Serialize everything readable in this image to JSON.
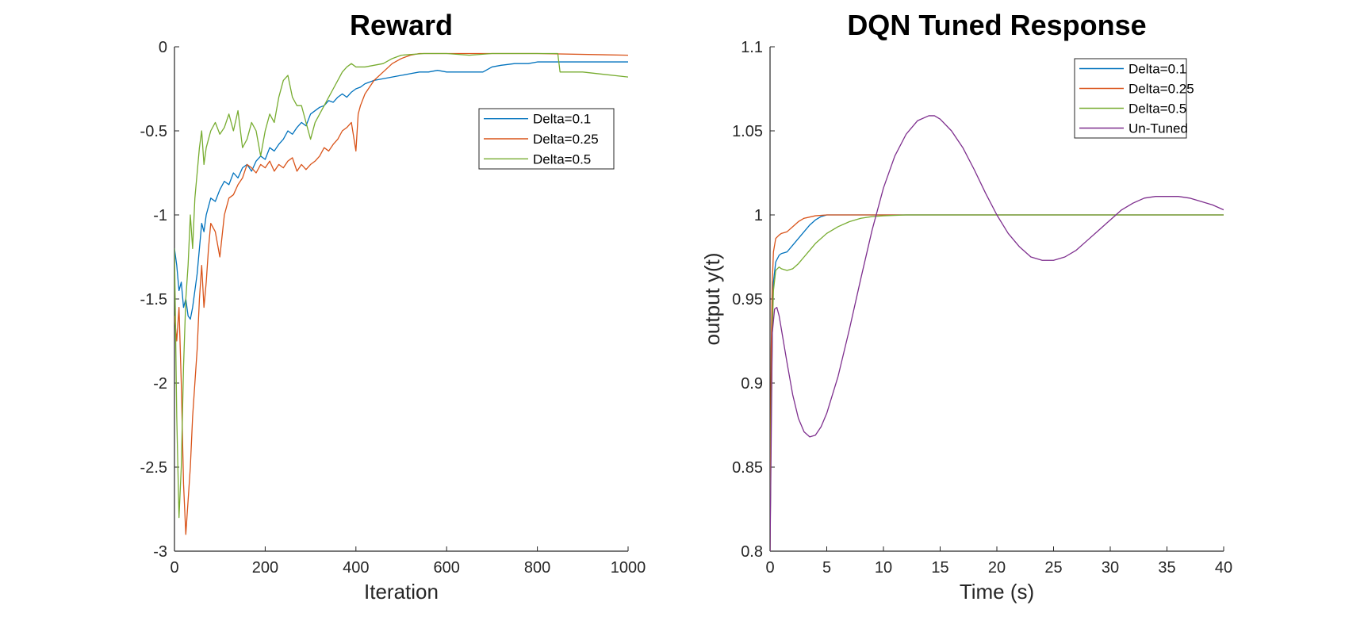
{
  "chart_data": [
    {
      "type": "line",
      "title": "Reward",
      "xlabel": "Iteration",
      "ylabel": "",
      "xlim": [
        0,
        1000
      ],
      "ylim": [
        -3,
        0
      ],
      "xticks": [
        0,
        200,
        400,
        600,
        800,
        1000
      ],
      "xtick_labels": [
        "0",
        "200",
        "400",
        "600",
        "800",
        "1000"
      ],
      "yticks": [
        0,
        -0.5,
        -1,
        -1.5,
        -2,
        -2.5,
        -3
      ],
      "ytick_labels": [
        "0",
        "-0.5",
        "-1",
        "-1.5",
        "-2",
        "-2.5",
        "-3"
      ],
      "grid": false,
      "legend": "top-right (inside)",
      "series": [
        {
          "name": "Delta=0.1",
          "color": "#0072BD",
          "x": [
            0,
            5,
            10,
            15,
            20,
            25,
            30,
            35,
            40,
            45,
            50,
            55,
            60,
            65,
            70,
            75,
            80,
            90,
            100,
            110,
            120,
            130,
            140,
            150,
            160,
            170,
            180,
            190,
            200,
            210,
            220,
            230,
            240,
            250,
            260,
            270,
            280,
            290,
            300,
            310,
            320,
            330,
            340,
            350,
            360,
            370,
            380,
            390,
            400,
            410,
            420,
            440,
            460,
            480,
            500,
            520,
            540,
            560,
            580,
            600,
            620,
            650,
            680,
            700,
            720,
            750,
            780,
            800,
            850,
            900,
            950,
            1000
          ],
          "y": [
            -1.2,
            -1.3,
            -1.45,
            -1.4,
            -1.55,
            -1.5,
            -1.6,
            -1.62,
            -1.55,
            -1.45,
            -1.35,
            -1.2,
            -1.05,
            -1.1,
            -1.0,
            -0.95,
            -0.9,
            -0.92,
            -0.85,
            -0.8,
            -0.82,
            -0.75,
            -0.78,
            -0.72,
            -0.7,
            -0.74,
            -0.68,
            -0.65,
            -0.67,
            -0.6,
            -0.62,
            -0.58,
            -0.55,
            -0.5,
            -0.52,
            -0.48,
            -0.45,
            -0.47,
            -0.4,
            -0.38,
            -0.36,
            -0.35,
            -0.32,
            -0.33,
            -0.3,
            -0.28,
            -0.3,
            -0.27,
            -0.25,
            -0.24,
            -0.22,
            -0.2,
            -0.19,
            -0.18,
            -0.17,
            -0.16,
            -0.15,
            -0.15,
            -0.14,
            -0.15,
            -0.15,
            -0.15,
            -0.15,
            -0.12,
            -0.11,
            -0.1,
            -0.1,
            -0.09,
            -0.09,
            -0.09,
            -0.09,
            -0.09
          ]
        },
        {
          "name": "Delta=0.25",
          "color": "#D95319",
          "x": [
            0,
            5,
            10,
            15,
            20,
            25,
            30,
            35,
            40,
            45,
            50,
            55,
            60,
            65,
            70,
            75,
            80,
            90,
            100,
            110,
            120,
            130,
            140,
            150,
            160,
            170,
            180,
            190,
            200,
            210,
            220,
            230,
            240,
            250,
            260,
            270,
            280,
            290,
            300,
            310,
            320,
            330,
            340,
            350,
            360,
            370,
            380,
            390,
            400,
            405,
            410,
            420,
            440,
            460,
            480,
            500,
            520,
            540,
            560,
            580,
            600,
            650,
            700,
            800,
            1000
          ],
          "y": [
            -1.6,
            -1.75,
            -1.55,
            -2.0,
            -2.6,
            -2.9,
            -2.7,
            -2.5,
            -2.2,
            -2.0,
            -1.8,
            -1.5,
            -1.3,
            -1.55,
            -1.4,
            -1.2,
            -1.05,
            -1.1,
            -1.25,
            -1.0,
            -0.9,
            -0.88,
            -0.82,
            -0.78,
            -0.7,
            -0.72,
            -0.75,
            -0.7,
            -0.72,
            -0.68,
            -0.74,
            -0.7,
            -0.72,
            -0.68,
            -0.66,
            -0.74,
            -0.7,
            -0.73,
            -0.7,
            -0.68,
            -0.65,
            -0.6,
            -0.62,
            -0.58,
            -0.55,
            -0.5,
            -0.48,
            -0.45,
            -0.62,
            -0.4,
            -0.35,
            -0.28,
            -0.2,
            -0.15,
            -0.1,
            -0.07,
            -0.05,
            -0.04,
            -0.04,
            -0.04,
            -0.04,
            -0.04,
            -0.04,
            -0.04,
            -0.05
          ]
        },
        {
          "name": "Delta=0.5",
          "color": "#77AC30",
          "x": [
            0,
            5,
            10,
            15,
            20,
            25,
            30,
            35,
            40,
            45,
            50,
            55,
            60,
            65,
            70,
            75,
            80,
            90,
            100,
            110,
            120,
            130,
            140,
            150,
            160,
            170,
            180,
            190,
            200,
            210,
            220,
            230,
            240,
            250,
            260,
            270,
            280,
            290,
            300,
            310,
            320,
            330,
            340,
            350,
            360,
            370,
            380,
            390,
            400,
            420,
            440,
            460,
            480,
            500,
            550,
            600,
            650,
            700,
            800,
            845,
            850,
            900,
            1000
          ],
          "y": [
            -1.2,
            -2.2,
            -2.8,
            -2.5,
            -1.9,
            -1.5,
            -1.3,
            -1.0,
            -1.2,
            -0.9,
            -0.75,
            -0.6,
            -0.5,
            -0.7,
            -0.6,
            -0.55,
            -0.5,
            -0.45,
            -0.52,
            -0.48,
            -0.4,
            -0.5,
            -0.38,
            -0.6,
            -0.55,
            -0.45,
            -0.5,
            -0.65,
            -0.5,
            -0.4,
            -0.45,
            -0.3,
            -0.2,
            -0.17,
            -0.3,
            -0.35,
            -0.35,
            -0.45,
            -0.55,
            -0.45,
            -0.4,
            -0.35,
            -0.3,
            -0.25,
            -0.2,
            -0.15,
            -0.12,
            -0.1,
            -0.12,
            -0.12,
            -0.11,
            -0.1,
            -0.07,
            -0.05,
            -0.04,
            -0.04,
            -0.05,
            -0.04,
            -0.04,
            -0.04,
            -0.15,
            -0.15,
            -0.18
          ]
        }
      ]
    },
    {
      "type": "line",
      "title": "DQN Tuned Response",
      "xlabel": "Time (s)",
      "ylabel": "output y(t)",
      "xlim": [
        0,
        40
      ],
      "ylim": [
        0.8,
        1.1
      ],
      "xticks": [
        0,
        5,
        10,
        15,
        20,
        25,
        30,
        35,
        40
      ],
      "xtick_labels": [
        "0",
        "5",
        "10",
        "15",
        "20",
        "25",
        "30",
        "35",
        "40"
      ],
      "yticks": [
        0.8,
        0.85,
        0.9,
        0.95,
        1,
        1.05,
        1.1
      ],
      "ytick_labels": [
        "0.8",
        "0.85",
        "0.9",
        "0.95",
        "1",
        "1.05",
        "1.1"
      ],
      "grid": false,
      "legend": "top-right (inside)",
      "series": [
        {
          "name": "Delta=0.1",
          "color": "#0072BD",
          "x": [
            0,
            0.1,
            0.2,
            0.3,
            0.5,
            0.8,
            1,
            1.5,
            2,
            2.5,
            3,
            3.5,
            4,
            4.5,
            5,
            6,
            8,
            10,
            15,
            20,
            30,
            40
          ],
          "y": [
            0.8,
            0.9,
            0.94,
            0.96,
            0.972,
            0.976,
            0.977,
            0.978,
            0.982,
            0.986,
            0.99,
            0.994,
            0.997,
            0.999,
            1.0,
            1.0,
            1.0,
            1.0,
            1.0,
            1.0,
            1.0,
            1.0
          ]
        },
        {
          "name": "Delta=0.25",
          "color": "#D95319",
          "x": [
            0,
            0.1,
            0.2,
            0.3,
            0.5,
            0.8,
            1,
            1.5,
            2,
            2.5,
            3,
            4,
            5,
            6,
            8,
            10,
            15,
            20,
            30,
            40
          ],
          "y": [
            0.8,
            0.92,
            0.96,
            0.978,
            0.986,
            0.988,
            0.989,
            0.99,
            0.993,
            0.996,
            0.998,
            0.9995,
            1.0,
            1.0,
            1.0,
            1.0,
            1.0,
            1.0,
            1.0,
            1.0
          ]
        },
        {
          "name": "Delta=0.5",
          "color": "#77AC30",
          "x": [
            0,
            0.1,
            0.2,
            0.3,
            0.5,
            0.8,
            1,
            1.5,
            2,
            2.5,
            3,
            3.5,
            4,
            5,
            6,
            7,
            8,
            9,
            10,
            12,
            15,
            20,
            30,
            40
          ],
          "y": [
            0.8,
            0.88,
            0.93,
            0.955,
            0.967,
            0.969,
            0.968,
            0.967,
            0.968,
            0.971,
            0.975,
            0.979,
            0.983,
            0.989,
            0.993,
            0.996,
            0.998,
            0.999,
            0.9995,
            1.0,
            1.0,
            1.0,
            1.0,
            1.0
          ]
        },
        {
          "name": "Un-Tuned",
          "color": "#7E2F8E",
          "x": [
            0,
            0.2,
            0.4,
            0.6,
            0.8,
            1.0,
            1.5,
            2,
            2.5,
            3,
            3.5,
            4,
            4.5,
            5,
            6,
            7,
            8,
            9,
            10,
            11,
            12,
            13,
            14,
            14.5,
            15,
            16,
            17,
            18,
            19,
            20,
            21,
            22,
            23,
            24,
            25,
            26,
            27,
            28,
            29,
            30,
            31,
            32,
            33,
            34,
            35,
            36,
            37,
            38,
            39,
            40
          ],
          "y": [
            0.8,
            0.93,
            0.944,
            0.945,
            0.94,
            0.932,
            0.912,
            0.893,
            0.879,
            0.871,
            0.868,
            0.869,
            0.874,
            0.882,
            0.904,
            0.932,
            0.962,
            0.991,
            1.016,
            1.035,
            1.048,
            1.056,
            1.059,
            1.059,
            1.057,
            1.05,
            1.04,
            1.027,
            1.013,
            1.0,
            0.989,
            0.981,
            0.975,
            0.973,
            0.973,
            0.975,
            0.979,
            0.985,
            0.991,
            0.997,
            1.003,
            1.007,
            1.01,
            1.011,
            1.011,
            1.011,
            1.01,
            1.008,
            1.006,
            1.003
          ]
        }
      ]
    }
  ]
}
